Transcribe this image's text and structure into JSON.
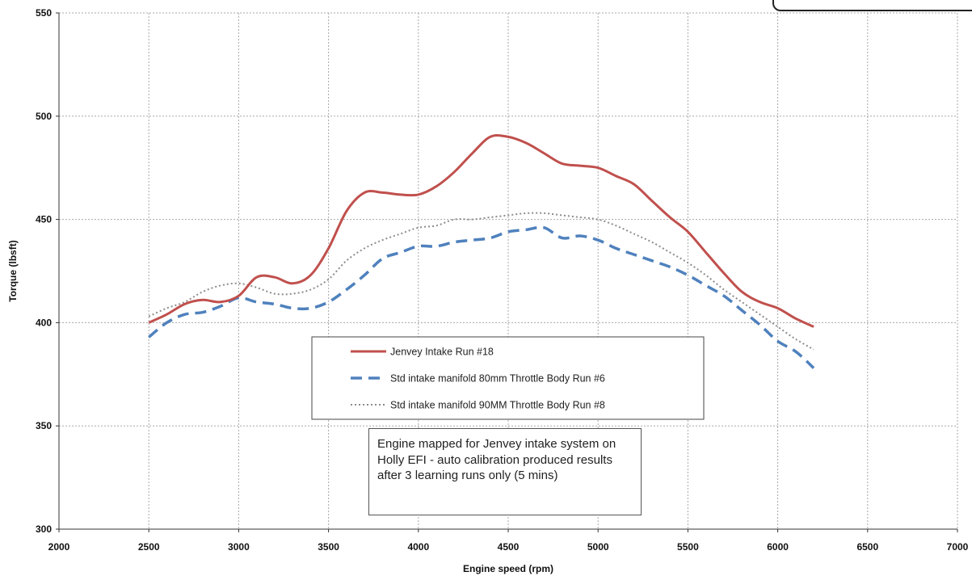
{
  "chart_data": {
    "type": "line",
    "title": "",
    "xlabel": "Engine speed (rpm)",
    "ylabel": "Torque (lbsft)",
    "xlim": [
      2000,
      7000
    ],
    "ylim": [
      300,
      550
    ],
    "xticks": [
      2000,
      2500,
      3000,
      3500,
      4000,
      4500,
      5000,
      5500,
      6000,
      6500,
      7000
    ],
    "yticks": [
      300,
      350,
      400,
      450,
      500,
      550
    ],
    "grid": true,
    "legend_position": "center",
    "series": [
      {
        "name": "Jenvey Intake Run #18",
        "color": "#c0504d",
        "style": "solid",
        "x": [
          2500,
          2600,
          2700,
          2800,
          2900,
          3000,
          3100,
          3200,
          3300,
          3400,
          3500,
          3600,
          3700,
          3800,
          3900,
          4000,
          4100,
          4200,
          4300,
          4400,
          4500,
          4600,
          4700,
          4800,
          4900,
          5000,
          5100,
          5200,
          5300,
          5400,
          5500,
          5600,
          5700,
          5800,
          5900,
          6000,
          6100,
          6200
        ],
        "y": [
          400,
          404,
          409,
          411,
          410,
          413,
          422,
          422,
          419,
          423,
          436,
          454,
          463,
          463,
          462,
          462,
          466,
          473,
          482,
          490,
          490,
          487,
          482,
          477,
          476,
          475,
          471,
          467,
          459,
          451,
          444,
          434,
          424,
          415,
          410,
          407,
          402,
          398
        ]
      },
      {
        "name": "Std intake manifold 80mm Throttle Body Run #6",
        "color": "#4f81bd",
        "style": "dashed",
        "x": [
          2500,
          2600,
          2700,
          2800,
          2900,
          3000,
          3100,
          3200,
          3300,
          3400,
          3500,
          3600,
          3700,
          3800,
          3900,
          4000,
          4100,
          4200,
          4300,
          4400,
          4500,
          4600,
          4700,
          4800,
          4900,
          5000,
          5100,
          5200,
          5300,
          5400,
          5500,
          5600,
          5700,
          5800,
          5900,
          6000,
          6100,
          6200
        ],
        "y": [
          393,
          400,
          404,
          405,
          408,
          412,
          410,
          409,
          407,
          407,
          410,
          416,
          423,
          431,
          434,
          437,
          437,
          439,
          440,
          441,
          444,
          445,
          446,
          441,
          442,
          440,
          436,
          433,
          430,
          427,
          423,
          418,
          413,
          406,
          399,
          391,
          386,
          378
        ]
      },
      {
        "name": "Std intake manifold 90MM Throttle Body Run #8",
        "color": "#8c8c8c",
        "style": "dotted",
        "x": [
          2500,
          2600,
          2700,
          2800,
          2900,
          3000,
          3100,
          3200,
          3300,
          3400,
          3500,
          3600,
          3700,
          3800,
          3900,
          4000,
          4100,
          4200,
          4300,
          4400,
          4500,
          4600,
          4700,
          4800,
          4900,
          5000,
          5100,
          5200,
          5300,
          5400,
          5500,
          5600,
          5700,
          5800,
          5900,
          6000,
          6100,
          6200
        ],
        "y": [
          403,
          407,
          410,
          415,
          418,
          419,
          417,
          414,
          414,
          416,
          421,
          430,
          436,
          440,
          443,
          446,
          447,
          450,
          450,
          451,
          452,
          453,
          453,
          452,
          451,
          450,
          447,
          443,
          439,
          434,
          429,
          423,
          416,
          410,
          404,
          398,
          392,
          387
        ]
      }
    ],
    "annotation": "Engine mapped for Jenvey intake system on Holly EFI - auto calibration produced results after 3 learning runs only (5 mins)"
  }
}
